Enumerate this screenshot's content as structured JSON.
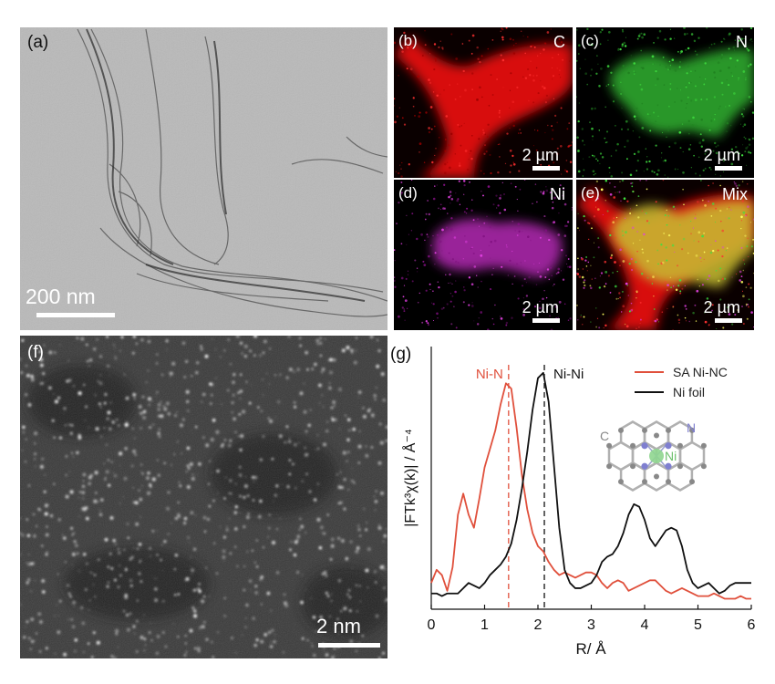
{
  "panels": {
    "a": {
      "label": "(a)",
      "scale_bar": "200 nm"
    },
    "b": {
      "label": "(b)",
      "element": "C",
      "scale_bar": "2 µm"
    },
    "c": {
      "label": "(c)",
      "element": "N",
      "scale_bar": "2 µm"
    },
    "d": {
      "label": "(d)",
      "element": "Ni",
      "scale_bar": "2 µm"
    },
    "e": {
      "label": "(e)",
      "element": "Mix",
      "scale_bar": "2 µm"
    },
    "f": {
      "label": "(f)",
      "scale_bar": "2 nm"
    }
  },
  "chart_data": {
    "type": "line",
    "panel_label": "(g)",
    "xlabel": "R/ Å",
    "ylabel": "|FTk³χ(k)| / Å⁻⁴",
    "xlim": [
      0,
      6
    ],
    "xticks": [
      0,
      1,
      2,
      3,
      4,
      5,
      6
    ],
    "ylim": [
      0,
      1
    ],
    "legend": "upper right",
    "x": [
      0,
      0.1,
      0.2,
      0.3,
      0.4,
      0.5,
      0.6,
      0.7,
      0.8,
      0.9,
      1,
      1.1,
      1.2,
      1.3,
      1.4,
      1.5,
      1.6,
      1.7,
      1.8,
      1.9,
      2,
      2.1,
      2.2,
      2.3,
      2.4,
      2.5,
      2.6,
      2.7,
      2.8,
      2.9,
      3,
      3.1,
      3.2,
      3.3,
      3.4,
      3.5,
      3.6,
      3.7,
      3.8,
      3.9,
      4,
      4.1,
      4.2,
      4.3,
      4.4,
      4.5,
      4.6,
      4.7,
      4.8,
      4.9,
      5,
      5.1,
      5.2,
      5.3,
      5.4,
      5.5,
      5.6,
      5.7,
      5.8,
      5.9,
      6
    ],
    "series": [
      {
        "name": "SA Ni-NC",
        "color": "#e0503c",
        "values": [
          0.1,
          0.15,
          0.13,
          0.07,
          0.16,
          0.36,
          0.44,
          0.36,
          0.31,
          0.42,
          0.54,
          0.61,
          0.68,
          0.78,
          0.86,
          0.84,
          0.69,
          0.51,
          0.38,
          0.29,
          0.24,
          0.22,
          0.18,
          0.15,
          0.13,
          0.14,
          0.13,
          0.12,
          0.13,
          0.14,
          0.14,
          0.13,
          0.1,
          0.08,
          0.1,
          0.11,
          0.1,
          0.07,
          0.08,
          0.09,
          0.1,
          0.11,
          0.11,
          0.09,
          0.07,
          0.06,
          0.07,
          0.08,
          0.07,
          0.06,
          0.05,
          0.05,
          0.05,
          0.06,
          0.05,
          0.04,
          0.04,
          0.04,
          0.05,
          0.04,
          0.04
        ]
      },
      {
        "name": "Ni foil",
        "color": "#111111",
        "values": [
          0.06,
          0.06,
          0.05,
          0.06,
          0.06,
          0.06,
          0.08,
          0.1,
          0.09,
          0.08,
          0.1,
          0.13,
          0.15,
          0.17,
          0.2,
          0.25,
          0.34,
          0.46,
          0.6,
          0.76,
          0.88,
          0.9,
          0.79,
          0.55,
          0.31,
          0.15,
          0.1,
          0.08,
          0.08,
          0.09,
          0.1,
          0.13,
          0.18,
          0.2,
          0.21,
          0.24,
          0.29,
          0.36,
          0.4,
          0.39,
          0.34,
          0.27,
          0.24,
          0.27,
          0.3,
          0.31,
          0.3,
          0.24,
          0.15,
          0.1,
          0.08,
          0.09,
          0.1,
          0.08,
          0.06,
          0.07,
          0.09,
          0.1,
          0.1,
          0.1,
          0.1
        ]
      }
    ],
    "vlines": [
      {
        "value": 1.45,
        "label": "Ni-N",
        "color": "#e0503c"
      },
      {
        "value": 2.12,
        "label": "Ni-Ni",
        "color": "#111111"
      }
    ],
    "inset_labels": {
      "carbon": "C",
      "nitrogen": "N",
      "nickel": "Ni"
    }
  }
}
